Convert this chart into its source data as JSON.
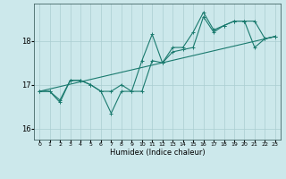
{
  "xlabel": "Humidex (Indice chaleur)",
  "bg_color": "#cce8eb",
  "grid_color": "#aacdd1",
  "line_color": "#1a7a6e",
  "xlim": [
    -0.5,
    23.5
  ],
  "ylim": [
    15.75,
    18.85
  ],
  "yticks": [
    16,
    17,
    18
  ],
  "xticks": [
    0,
    1,
    2,
    3,
    4,
    5,
    6,
    7,
    8,
    9,
    10,
    11,
    12,
    13,
    14,
    15,
    16,
    17,
    18,
    19,
    20,
    21,
    22,
    23
  ],
  "series1_x": [
    0,
    1,
    2,
    3,
    4,
    5,
    6,
    7,
    8,
    9,
    10,
    11,
    12,
    13,
    14,
    15,
    16,
    17,
    18,
    19,
    20,
    21,
    22,
    23
  ],
  "series1_y": [
    16.85,
    16.85,
    16.6,
    17.1,
    17.1,
    17.0,
    16.85,
    16.35,
    16.85,
    16.85,
    17.55,
    18.15,
    17.5,
    17.85,
    17.85,
    18.2,
    18.65,
    18.25,
    18.35,
    18.45,
    18.45,
    17.85,
    18.05,
    18.1
  ],
  "series2_x": [
    0,
    1,
    2,
    3,
    4,
    5,
    6,
    7,
    8,
    9,
    10,
    11,
    12,
    13,
    14,
    15,
    16,
    17,
    18,
    19,
    20,
    21,
    22,
    23
  ],
  "series2_y": [
    16.85,
    16.85,
    16.65,
    17.1,
    17.1,
    17.0,
    16.85,
    16.85,
    17.0,
    16.85,
    16.85,
    17.55,
    17.5,
    17.75,
    17.8,
    17.85,
    18.55,
    18.2,
    18.35,
    18.45,
    18.45,
    18.45,
    18.05,
    18.1
  ],
  "trend_x": [
    0,
    23
  ],
  "trend_y": [
    16.85,
    18.1
  ]
}
